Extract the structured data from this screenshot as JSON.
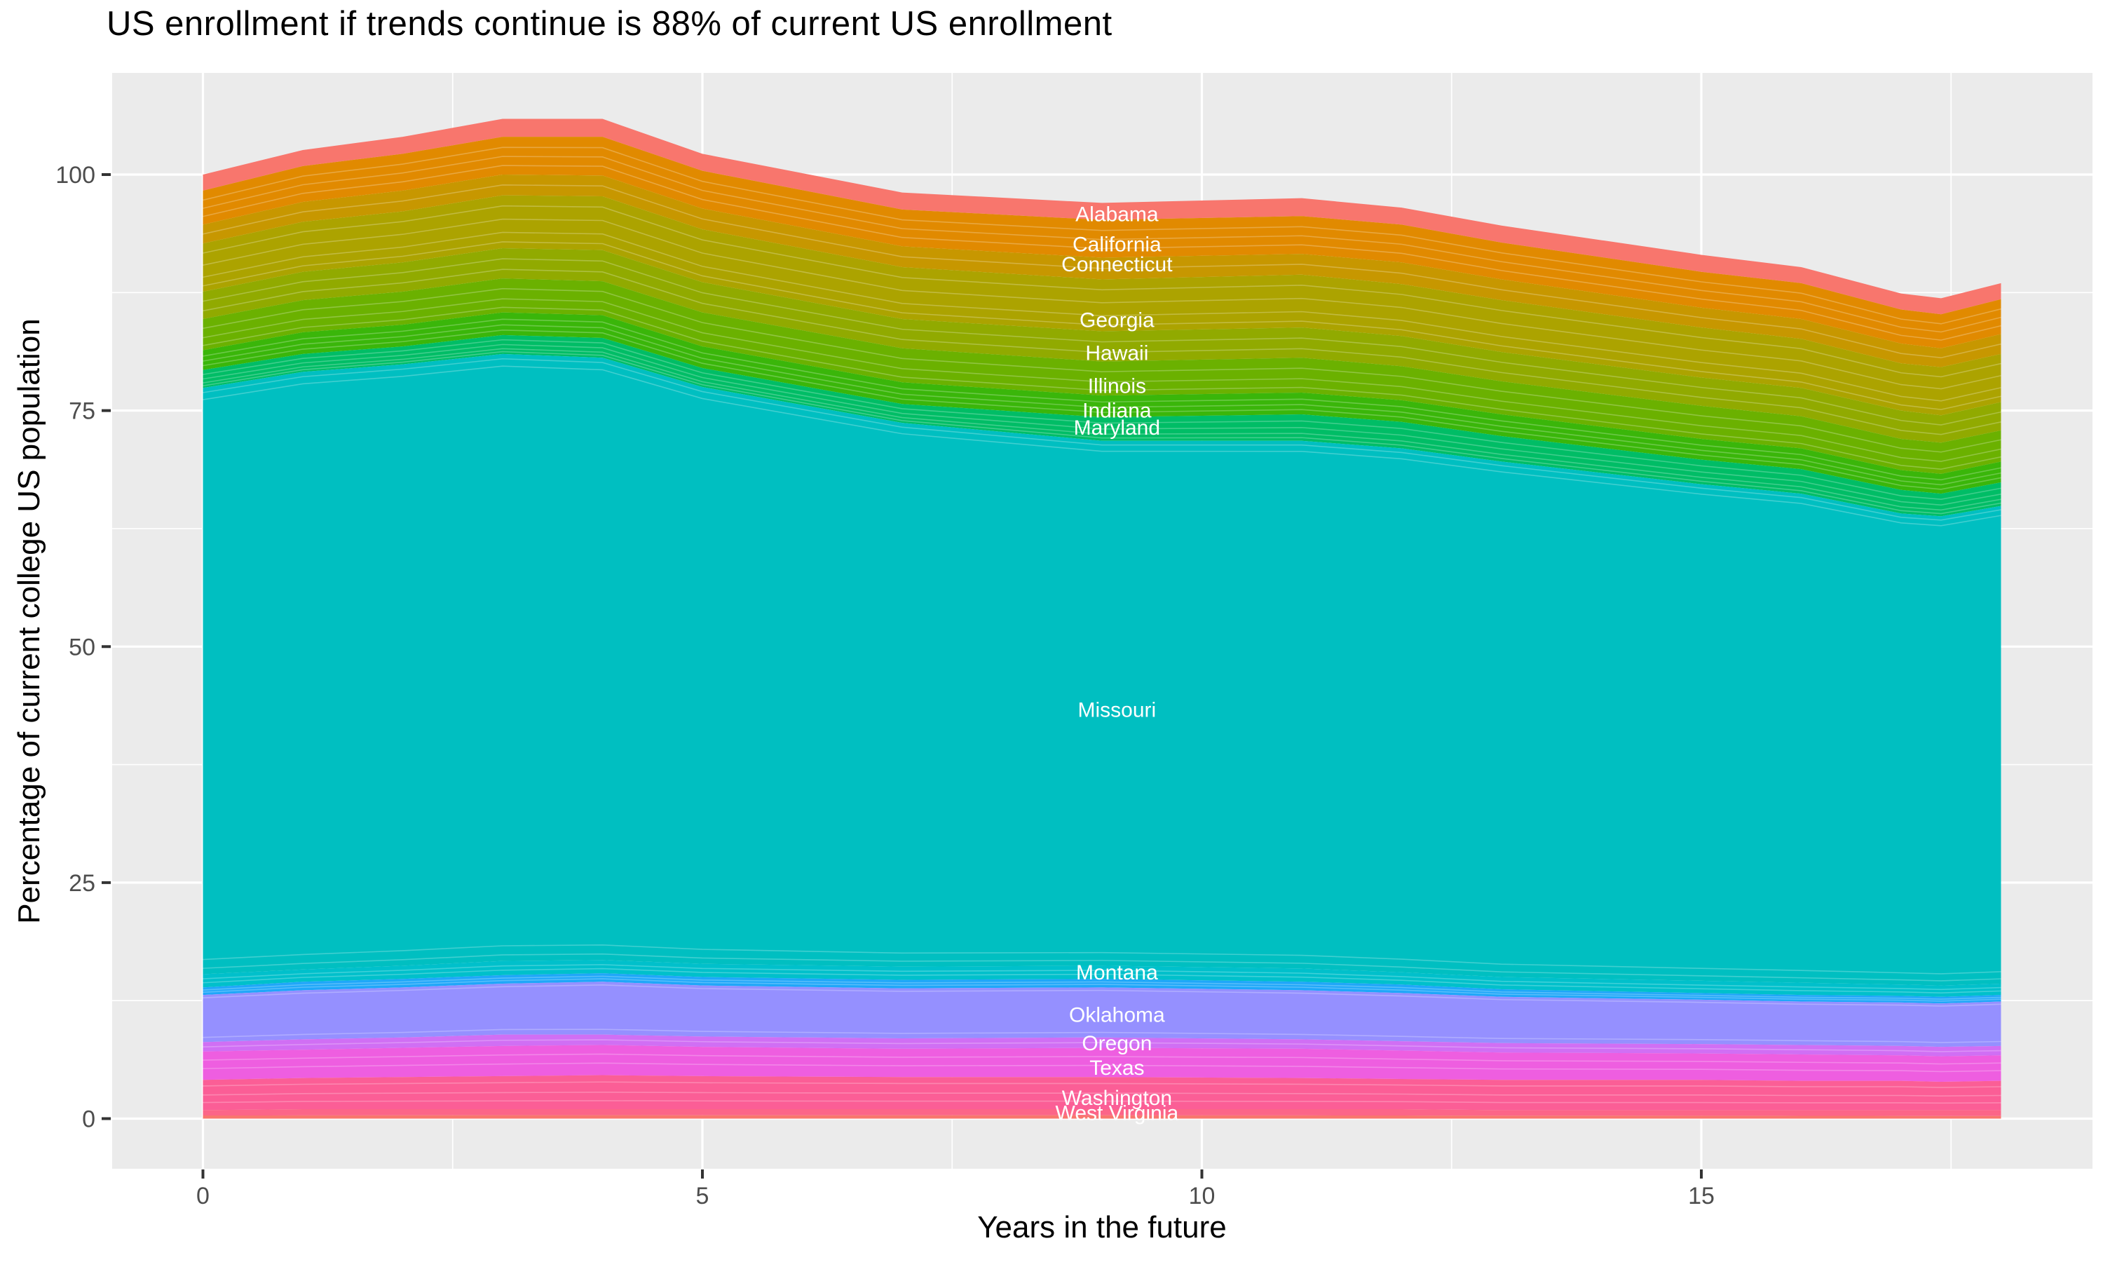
{
  "title": "US enrollment if trends continue is 88% of current US enrollment",
  "axes": {
    "x": {
      "label": "Years in the future",
      "ticks": [
        0,
        5,
        10,
        15
      ],
      "tick_labels": [
        "0",
        "5",
        "10",
        "15"
      ],
      "minor_ticks": [
        2.5,
        7.5,
        12.5,
        17.5
      ],
      "range": [
        0,
        18
      ]
    },
    "y": {
      "label": "Percentage of current college US population",
      "ticks": [
        0,
        25,
        50,
        75,
        100
      ],
      "tick_labels": [
        "0",
        "25",
        "50",
        "75",
        "100"
      ],
      "minor_ticks": [
        12.5,
        37.5,
        62.5,
        87.5
      ],
      "range": [
        0,
        106
      ]
    }
  },
  "colors": {
    "panel_bg": "#EBEBEB",
    "grid": "#FFFFFF",
    "tick_text": "#4D4D4D",
    "tick_mark": "#333333",
    "title_text": "#000000",
    "state_label_text": "#FFFFFF"
  },
  "chart_data": {
    "type": "area",
    "stacked": true,
    "title": "US enrollment if trends continue is 88% of current US enrollment",
    "xlabel": "Years in the future",
    "ylabel": "Percentage of current college US population",
    "xlim": [
      0,
      18
    ],
    "ylim": [
      0,
      106
    ],
    "grid": true,
    "legend": "none",
    "baseline": 0,
    "x": [
      0,
      1,
      2,
      3,
      4,
      5,
      7,
      9,
      11,
      12,
      13,
      15,
      16,
      17,
      17.4,
      18
    ],
    "bands": [
      {
        "label": "Alabama",
        "color": "#F8766D",
        "inner_lines": [],
        "top": [
          100,
          102.6,
          104,
          105.9,
          105.9,
          102.2,
          98.1,
          97,
          97.5,
          96.5,
          94.6,
          91.5,
          90.2,
          87.4,
          86.9,
          88.5
        ]
      },
      {
        "label": "California",
        "color": "#E18A00",
        "inner_lines": [
          0.28,
          0.52,
          0.76
        ],
        "top": [
          98.3,
          100.9,
          102.2,
          104,
          104,
          100.4,
          96.3,
          95.2,
          95.6,
          94.7,
          92.8,
          89.7,
          88.5,
          85.7,
          85.2,
          86.8
        ]
      },
      {
        "label": "Connecticut",
        "color": "#C79700",
        "inner_lines": [
          0.5
        ],
        "top": [
          94.7,
          97.1,
          98.3,
          100,
          99.9,
          96.4,
          92.4,
          91.2,
          91.6,
          90.7,
          88.9,
          85.9,
          84.7,
          82.1,
          81.6,
          83.1
        ]
      },
      {
        "label": "Georgia",
        "color": "#ACA300",
        "inner_lines": [
          0.2,
          0.45,
          0.7,
          0.88
        ],
        "top": [
          92.7,
          95,
          96.1,
          97.8,
          97.7,
          94.2,
          90.2,
          88.9,
          89.4,
          88.4,
          86.7,
          83.8,
          82.6,
          80,
          79.6,
          81
        ]
      },
      {
        "label": "Hawaii",
        "color": "#91AA00",
        "inner_lines": [
          0.35,
          0.7
        ],
        "top": [
          87.6,
          89.7,
          90.7,
          92.2,
          92,
          88.6,
          84.7,
          83.4,
          83.8,
          82.9,
          81.2,
          78.5,
          77.4,
          75,
          74.5,
          75.9
        ]
      },
      {
        "label": "Illinois",
        "color": "#6BB100",
        "inner_lines": [
          0.3,
          0.6,
          0.85
        ],
        "top": [
          84.7,
          86.7,
          87.6,
          89,
          88.7,
          85.4,
          81.6,
          80.2,
          80.6,
          79.7,
          78.1,
          75.5,
          74.4,
          72,
          71.6,
          72.9
        ]
      },
      {
        "label": "Indiana",
        "color": "#3AB60A",
        "inner_lines": [
          0.3,
          0.55,
          0.78
        ],
        "top": [
          81.4,
          83.3,
          84.1,
          85.4,
          85.1,
          81.8,
          78,
          76.6,
          76.9,
          76.1,
          74.6,
          72,
          71,
          68.7,
          68.3,
          69.6
        ]
      },
      {
        "label": "Maryland",
        "color": "#00BD66",
        "inner_lines": [
          0.25,
          0.5,
          0.72,
          0.88
        ],
        "top": [
          79.3,
          81,
          81.8,
          83,
          82.7,
          79.5,
          75.7,
          74.3,
          74.6,
          73.8,
          72.3,
          69.8,
          68.8,
          66.6,
          66.2,
          67.4
        ]
      },
      {
        "label": "Missouri",
        "color": "#00BFC1",
        "inner_lines": [
          0.008,
          0.02,
          0.975,
          0.99
        ],
        "top": [
          77.4,
          79.1,
          79.9,
          81,
          80.6,
          77.5,
          73.7,
          71.8,
          71.8,
          71,
          69.6,
          67.2,
          66.2,
          64.1,
          63.8,
          64.9
        ]
      },
      {
        "label": "Montana",
        "color": "#00C0CB",
        "inner_lines": [
          0.35,
          0.65
        ],
        "top": [
          15.3,
          15.8,
          16.2,
          16.7,
          16.8,
          16.4,
          16.1,
          16.2,
          15.9,
          15.5,
          15,
          14.6,
          14.4,
          14.2,
          14.1,
          14.3
        ]
      },
      {
        "label": null,
        "color": "#1FA7F9",
        "inner_lines": [
          0.35,
          0.65
        ],
        "top": [
          13.9,
          14.5,
          14.8,
          15.2,
          15.4,
          15,
          14.7,
          14.8,
          14.5,
          14.2,
          13.7,
          13.3,
          13.1,
          13,
          12.9,
          13.1
        ]
      },
      {
        "label": "Oklahoma",
        "color": "#9590FF",
        "inner_lines": [
          0.06,
          0.9
        ],
        "top": [
          13.1,
          13.6,
          13.9,
          14.3,
          14.5,
          14.1,
          13.8,
          13.9,
          13.6,
          13.3,
          12.9,
          12.6,
          12.4,
          12.3,
          12.2,
          12.4
        ]
      },
      {
        "label": "Oregon",
        "color": "#D06FF4",
        "inner_lines": [
          0.5
        ],
        "top": [
          8.1,
          8.4,
          8.6,
          8.9,
          8.9,
          8.7,
          8.5,
          8.6,
          8.4,
          8.2,
          8,
          7.9,
          7.8,
          7.7,
          7.6,
          7.7
        ]
      },
      {
        "label": "Texas",
        "color": "#EE5EE0",
        "inner_lines": [
          0.3,
          0.6
        ],
        "top": [
          7.1,
          7.3,
          7.5,
          7.7,
          7.8,
          7.6,
          7.4,
          7.5,
          7.4,
          7.2,
          7,
          6.9,
          6.8,
          6.7,
          6.6,
          6.7
        ]
      },
      {
        "label": "Washington",
        "color": "#FB5E96",
        "inner_lines": [
          0.2,
          0.5,
          0.75
        ],
        "top": [
          4.1,
          4.3,
          4.4,
          4.5,
          4.6,
          4.5,
          4.4,
          4.4,
          4.3,
          4.2,
          4.1,
          4.1,
          4,
          4,
          3.9,
          4
        ]
      },
      {
        "label": "West Virginia",
        "color": "#FC6588",
        "inner_lines": [],
        "top": [
          0.9,
          1,
          1,
          1,
          1,
          1,
          1,
          1,
          1,
          1,
          0.9,
          0.9,
          0.9,
          0.9,
          0.9,
          0.9
        ]
      },
      {
        "label": null,
        "color": "#F8766D",
        "inner_lines": [],
        "top": [
          0.33,
          0.34,
          0.35,
          0.36,
          0.36,
          0.35,
          0.35,
          0.35,
          0.34,
          0.33,
          0.32,
          0.31,
          0.3,
          0.29,
          0.28,
          0.28
        ]
      }
    ],
    "state_labels": [
      {
        "text": "Alabama",
        "x": 9.15,
        "y": 95.8
      },
      {
        "text": "California",
        "x": 9.15,
        "y": 92.6
      },
      {
        "text": "Connecticut",
        "x": 9.15,
        "y": 90.5
      },
      {
        "text": "Georgia",
        "x": 9.15,
        "y": 84.6
      },
      {
        "text": "Hawaii",
        "x": 9.15,
        "y": 81.1
      },
      {
        "text": "Illinois",
        "x": 9.15,
        "y": 77.6
      },
      {
        "text": "Indiana",
        "x": 9.15,
        "y": 75.0
      },
      {
        "text": "Maryland",
        "x": 9.15,
        "y": 73.2
      },
      {
        "text": "Missouri",
        "x": 9.15,
        "y": 43.3
      },
      {
        "text": "Montana",
        "x": 9.15,
        "y": 15.5
      },
      {
        "text": "Oklahoma",
        "x": 9.15,
        "y": 11.0
      },
      {
        "text": "Oregon",
        "x": 9.15,
        "y": 8.0
      },
      {
        "text": "Texas",
        "x": 9.15,
        "y": 5.4
      },
      {
        "text": "Washington",
        "x": 9.15,
        "y": 2.2
      },
      {
        "text": "West Virginia",
        "x": 9.15,
        "y": 0.6
      }
    ]
  }
}
